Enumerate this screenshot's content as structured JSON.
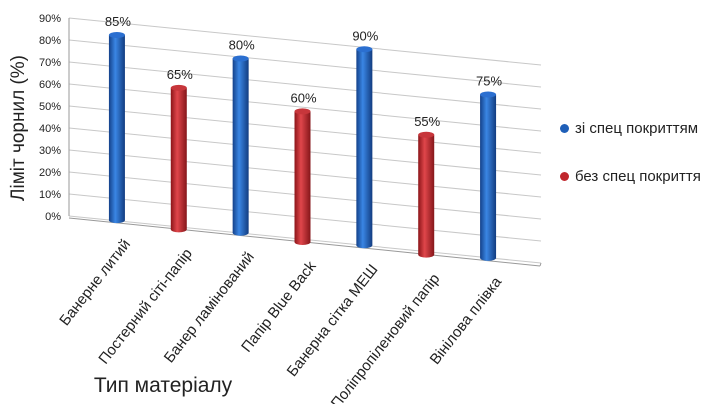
{
  "chart_data": {
    "type": "bar",
    "xlabel": "Тип матеріалу",
    "ylabel": "Ліміт чорнил (%)",
    "ylim": [
      0,
      90
    ],
    "yticks": [
      "0%",
      "10%",
      "20%",
      "30%",
      "40%",
      "50%",
      "60%",
      "70%",
      "80%",
      "90%"
    ],
    "categories": [
      "Банерне литий",
      "Постерний сіті-папір",
      "Банер ламінований",
      "Папір Blue Back",
      "Банерна сітка МЕШ",
      "Поліпропіленовий папір",
      "Вінілова плівка"
    ],
    "values": [
      85,
      65,
      80,
      60,
      90,
      55,
      75
    ],
    "value_labels": [
      "85%",
      "65%",
      "80%",
      "60%",
      "90%",
      "55%",
      "75%"
    ],
    "series_index": [
      0,
      1,
      0,
      1,
      0,
      1,
      0
    ],
    "series": [
      {
        "name": "зі спец покриттям",
        "color": "#1f5fb8"
      },
      {
        "name": "без спец покриття",
        "color": "#c0272d"
      }
    ],
    "grid": true,
    "legend_position": "right"
  }
}
